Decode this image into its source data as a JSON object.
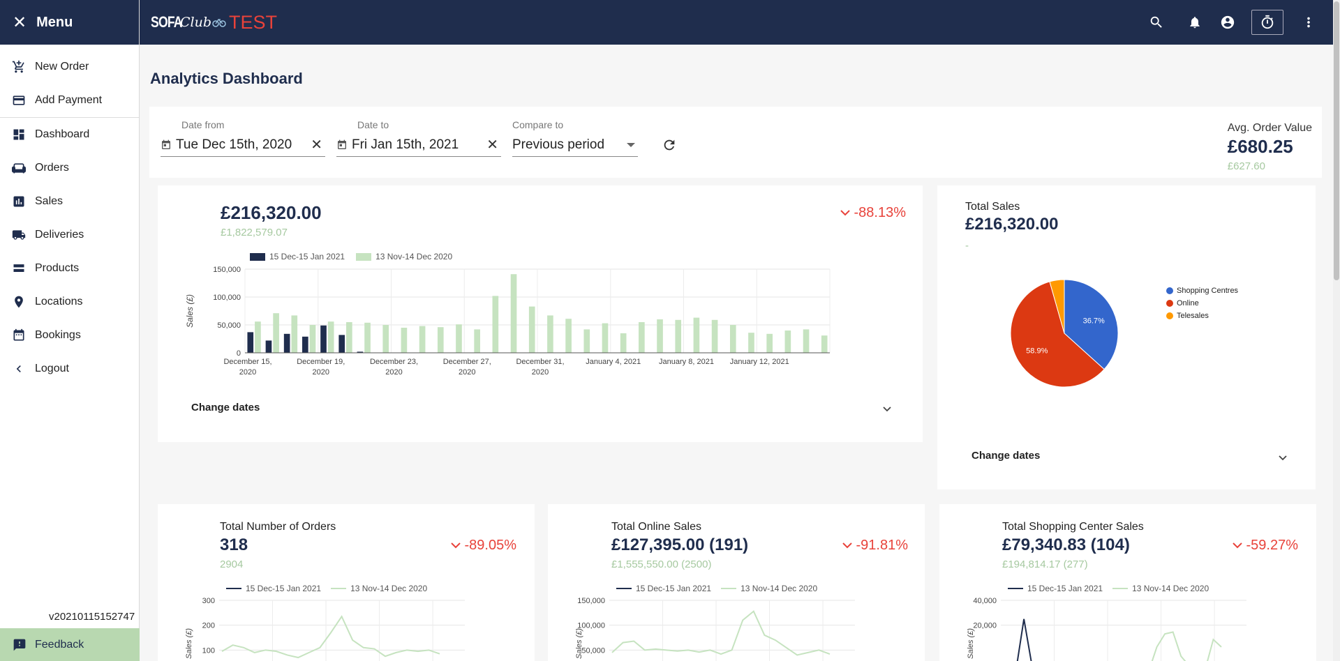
{
  "sidebar": {
    "title": "Menu",
    "items": [
      {
        "label": "New Order",
        "icon": "cart-plus-icon"
      },
      {
        "label": "Add Payment",
        "icon": "credit-card-icon"
      },
      {
        "label": "Dashboard",
        "icon": "dashboard-icon"
      },
      {
        "label": "Orders",
        "icon": "sofa-icon"
      },
      {
        "label": "Sales",
        "icon": "bar-chart-icon"
      },
      {
        "label": "Deliveries",
        "icon": "truck-icon"
      },
      {
        "label": "Products",
        "icon": "list-icon"
      },
      {
        "label": "Locations",
        "icon": "location-pin-icon"
      },
      {
        "label": "Bookings",
        "icon": "calendar-icon"
      },
      {
        "label": "Logout",
        "icon": "chevron-left-icon"
      }
    ],
    "version": "v20210115152747",
    "feedback": "Feedback"
  },
  "topbar": {
    "logo_sofa": "SOFA",
    "logo_club": "Club",
    "logo_test": "TEST"
  },
  "page": {
    "title": "Analytics Dashboard"
  },
  "filters": {
    "date_from_label": "Date from",
    "date_from_value": "Tue Dec 15th, 2020",
    "date_to_label": "Date to",
    "date_to_value": "Fri Jan 15th, 2021",
    "compare_label": "Compare to",
    "compare_value": "Previous period",
    "aov_title": "Avg. Order Value",
    "aov_value": "£680.25",
    "aov_prev": "£627.60"
  },
  "sales_card": {
    "value": "£216,320.00",
    "prev": "£1,822,579.07",
    "change": "-88.13%",
    "change_dates": "Change dates"
  },
  "pie_card": {
    "title": "Total Sales",
    "value": "£216,320.00",
    "sub": "-",
    "change_dates": "Change dates"
  },
  "orders_card": {
    "title": "Total Number of Orders",
    "value": "318",
    "prev": "2904",
    "change": "-89.05%"
  },
  "online_card": {
    "title": "Total Online Sales",
    "value": "£127,395.00 (191)",
    "prev": "£1,555,550.00 (2500)",
    "change": "-91.81%"
  },
  "shopping_card": {
    "title": "Total Shopping Center Sales",
    "value": "£79,340.83 (104)",
    "prev": "£194,814.17 (277)",
    "change": "-59.27%"
  },
  "colors": {
    "navy": "#1f2d4d",
    "green_light": "#c6e3c0",
    "red": "#e8423a",
    "pie_blue": "#3366cc",
    "pie_red": "#dc3912",
    "pie_orange": "#ff9900"
  },
  "chart_data": [
    {
      "type": "bar",
      "ylabel": "Sales (£)",
      "ylim": [
        0,
        150000
      ],
      "yticks": [
        "150,000",
        "100,000",
        "50,000",
        "0"
      ],
      "xticks": [
        "December 15, 2020",
        "December 19, 2020",
        "December 23, 2020",
        "December 27, 2020",
        "December 31, 2020",
        "January 4, 2021",
        "January 8, 2021",
        "January 12, 2021"
      ],
      "series": [
        {
          "name": "15 Dec-15 Jan 2021",
          "values": [
            37000,
            22000,
            34000,
            29000,
            49000,
            32000,
            2000,
            0,
            0,
            0,
            0,
            0,
            0,
            0,
            0,
            0,
            0,
            0,
            0,
            0,
            0,
            0,
            0,
            0,
            0,
            0,
            0,
            0,
            0,
            0,
            0,
            0
          ]
        },
        {
          "name": "13 Nov-14 Dec 2020",
          "values": [
            56000,
            71000,
            67000,
            50000,
            56000,
            55000,
            54000,
            50000,
            45000,
            48000,
            46000,
            51000,
            42000,
            102000,
            141000,
            83000,
            67000,
            61000,
            42000,
            53000,
            35000,
            55000,
            60000,
            59000,
            63000,
            59000,
            50000,
            36000,
            34000,
            40000,
            42000,
            31000
          ]
        }
      ]
    },
    {
      "type": "pie",
      "categories": [
        "Shopping Centres",
        "Online",
        "Telesales"
      ],
      "values": [
        36.7,
        58.9,
        4.4
      ],
      "labels": [
        "36.7%",
        "58.9%",
        ""
      ]
    },
    {
      "type": "line",
      "ylim": [
        0,
        300
      ],
      "yticks": [
        "300",
        "200",
        "100"
      ],
      "ylabel": "Sales (£)",
      "series": [
        {
          "name": "15 Dec-15 Jan 2021",
          "values": []
        },
        {
          "name": "13 Nov-14 Dec 2020",
          "values": [
            95,
            120,
            110,
            90,
            100,
            95,
            80,
            70,
            90,
            110,
            170,
            235,
            140,
            110,
            105,
            75,
            90,
            100,
            95,
            100,
            85
          ]
        }
      ]
    },
    {
      "type": "line",
      "ylim": [
        0,
        150000
      ],
      "yticks": [
        "150,000",
        "100,000",
        "50,000"
      ],
      "ylabel": "Sales (£)",
      "series": [
        {
          "name": "15 Dec-15 Jan 2021",
          "values": []
        },
        {
          "name": "13 Nov-14 Dec 2020",
          "values": [
            45000,
            65000,
            68000,
            50000,
            52000,
            50000,
            48000,
            50000,
            46000,
            50000,
            42000,
            50000,
            110000,
            128000,
            80000,
            70000,
            55000,
            40000,
            45000,
            50000,
            42000
          ]
        }
      ]
    },
    {
      "type": "line",
      "ylim": [
        0,
        40000
      ],
      "yticks": [
        "40,000",
        "20,000"
      ],
      "ylabel": "Sales (£)",
      "series": [
        {
          "name": "15 Dec-15 Jan 2021",
          "values": [
            0,
            2000,
            30000,
            5000
          ]
        },
        {
          "name": "13 Nov-14 Dec 2020",
          "values": [
            0,
            0,
            0,
            0,
            0,
            0,
            0,
            0,
            0,
            0,
            0,
            0,
            0,
            0,
            0,
            0,
            0,
            6000,
            2000,
            15000,
            22000,
            23000,
            10000,
            5000,
            6000,
            3000,
            19000,
            15000
          ]
        }
      ]
    }
  ],
  "legend": {
    "current": "15 Dec-15 Jan 2021",
    "previous": "13 Nov-14 Dec 2020"
  }
}
